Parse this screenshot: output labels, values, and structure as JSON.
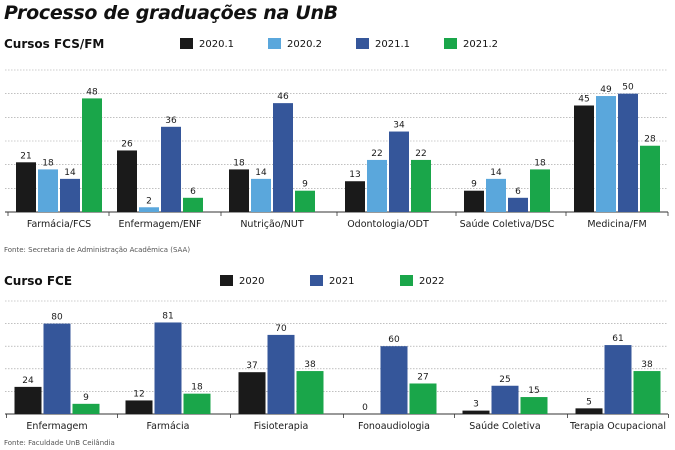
{
  "title": "Processo de graduações na UnB",
  "chart_data": [
    {
      "type": "bar",
      "title": "Cursos FCS/FM",
      "categories": [
        "Farmácia/FCS",
        "Enfermagem/ENF",
        "Nutrição/NUT",
        "Odontologia/ODT",
        "Saúde Coletiva/DSC",
        "Medicina/FM"
      ],
      "series": [
        {
          "name": "2020.1",
          "color": "#1a1a1a",
          "values": [
            21,
            26,
            18,
            13,
            9,
            45
          ]
        },
        {
          "name": "2020.2",
          "color": "#5aa7dc",
          "values": [
            18,
            2,
            14,
            22,
            14,
            49
          ]
        },
        {
          "name": "2021.1",
          "color": "#35569a",
          "values": [
            14,
            36,
            46,
            34,
            6,
            50
          ]
        },
        {
          "name": "2021.2",
          "color": "#1aa64a",
          "values": [
            48,
            6,
            9,
            22,
            18,
            28
          ]
        }
      ],
      "ylim": [
        0,
        60
      ],
      "grid": true,
      "legend_position": "top",
      "source": "Fonte: Secretaria de Administração Acadêmica (SAA)"
    },
    {
      "type": "bar",
      "title": "Curso FCE",
      "categories": [
        "Enfermagem",
        "Farmácia",
        "Fisioterapia",
        "Fonoaudiologia",
        "Saúde Coletiva",
        "Terapia Ocupacional"
      ],
      "series": [
        {
          "name": "2020",
          "color": "#1a1a1a",
          "values": [
            24,
            12,
            37,
            0,
            3,
            5
          ]
        },
        {
          "name": "2021",
          "color": "#35569a",
          "values": [
            80,
            81,
            70,
            60,
            25,
            61
          ]
        },
        {
          "name": "2022",
          "color": "#1aa64a",
          "values": [
            9,
            18,
            38,
            27,
            15,
            38
          ]
        }
      ],
      "ylim": [
        0,
        100
      ],
      "grid": true,
      "legend_position": "top",
      "source": "Fonte: Faculdade UnB Ceilândia"
    }
  ]
}
